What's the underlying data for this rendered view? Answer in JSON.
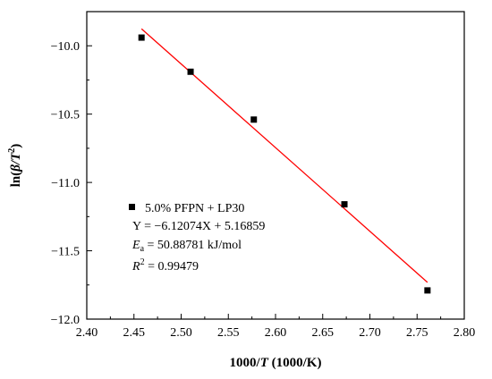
{
  "chart_data": {
    "type": "scatter",
    "xlabel": "1000/T (1000/K)",
    "xlabel_parts": {
      "prefix": "1000/",
      "italic": "T",
      "suffix": " (1000/K)"
    },
    "ylabel": "ln(β/T²)",
    "ylabel_parts": {
      "prefix": "ln(",
      "italic": "β/T",
      "sup": "2",
      "suffix": ")"
    },
    "xlim": [
      2.4,
      2.8
    ],
    "ylim": [
      -12.0,
      -9.75
    ],
    "xticks": [
      "2.40",
      "2.45",
      "2.50",
      "2.55",
      "2.60",
      "2.65",
      "2.70",
      "2.75",
      "2.80"
    ],
    "yticks": [
      "-10.0",
      "-10.5",
      "-11.0",
      "-11.5",
      "-12.0"
    ],
    "series": [
      {
        "name": "5.0% PFPN + LP30",
        "marker": "square",
        "color": "#000000",
        "x": [
          2.458,
          2.51,
          2.577,
          2.673,
          2.761
        ],
        "y": [
          -9.94,
          -10.19,
          -10.54,
          -11.16,
          -11.79
        ]
      }
    ],
    "fit": {
      "slope": -6.12074,
      "intercept": 5.16859,
      "x_range": [
        2.458,
        2.761
      ],
      "color": "#ff0000"
    },
    "legend": {
      "placement": "bottom-left",
      "series_label": "5.0% PFPN + LP30",
      "equation": "Y = −6.12074X + 5.16859",
      "ea": {
        "symbol": "E",
        "sub": "a",
        "value": " = 50.88781 kJ/mol"
      },
      "r2": {
        "symbol": "R",
        "sup": "2",
        "value": " = 0.99479"
      }
    }
  }
}
